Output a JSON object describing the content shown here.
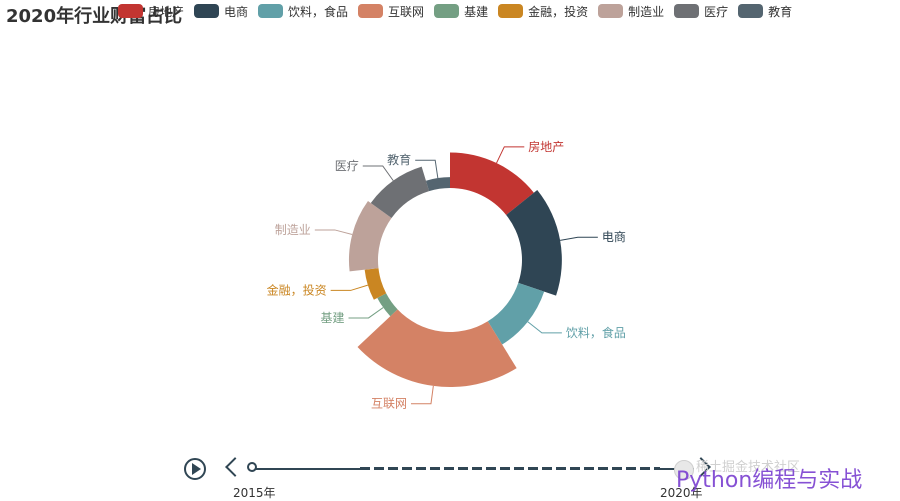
{
  "chart_data": {
    "type": "pie",
    "subtype": "rose-donut",
    "title": "2020年行业财富占比",
    "legend_position": "top",
    "slices": [
      {
        "name": "房地产",
        "value": 85,
        "color": "#c23531"
      },
      {
        "name": "电商",
        "value": 95,
        "color": "#2f4554"
      },
      {
        "name": "饮料，食品",
        "value": 66,
        "color": "#61a0a8"
      },
      {
        "name": "互联网",
        "value": 130,
        "color": "#d48265"
      },
      {
        "name": "基建",
        "value": 26,
        "color": "#749f83"
      },
      {
        "name": "金融，投资",
        "value": 35,
        "color": "#ca8622"
      },
      {
        "name": "制造业",
        "value": 70,
        "color": "#bda29a"
      },
      {
        "name": "医疗",
        "value": 62,
        "color": "#6e7074"
      },
      {
        "name": "教育",
        "value": 28,
        "color": "#546570"
      }
    ]
  },
  "timeline": {
    "labels": [
      "2015年",
      "2020年"
    ]
  },
  "watermark": {
    "text": "稀土掘金技术社区",
    "main": "Python编程与实战"
  }
}
